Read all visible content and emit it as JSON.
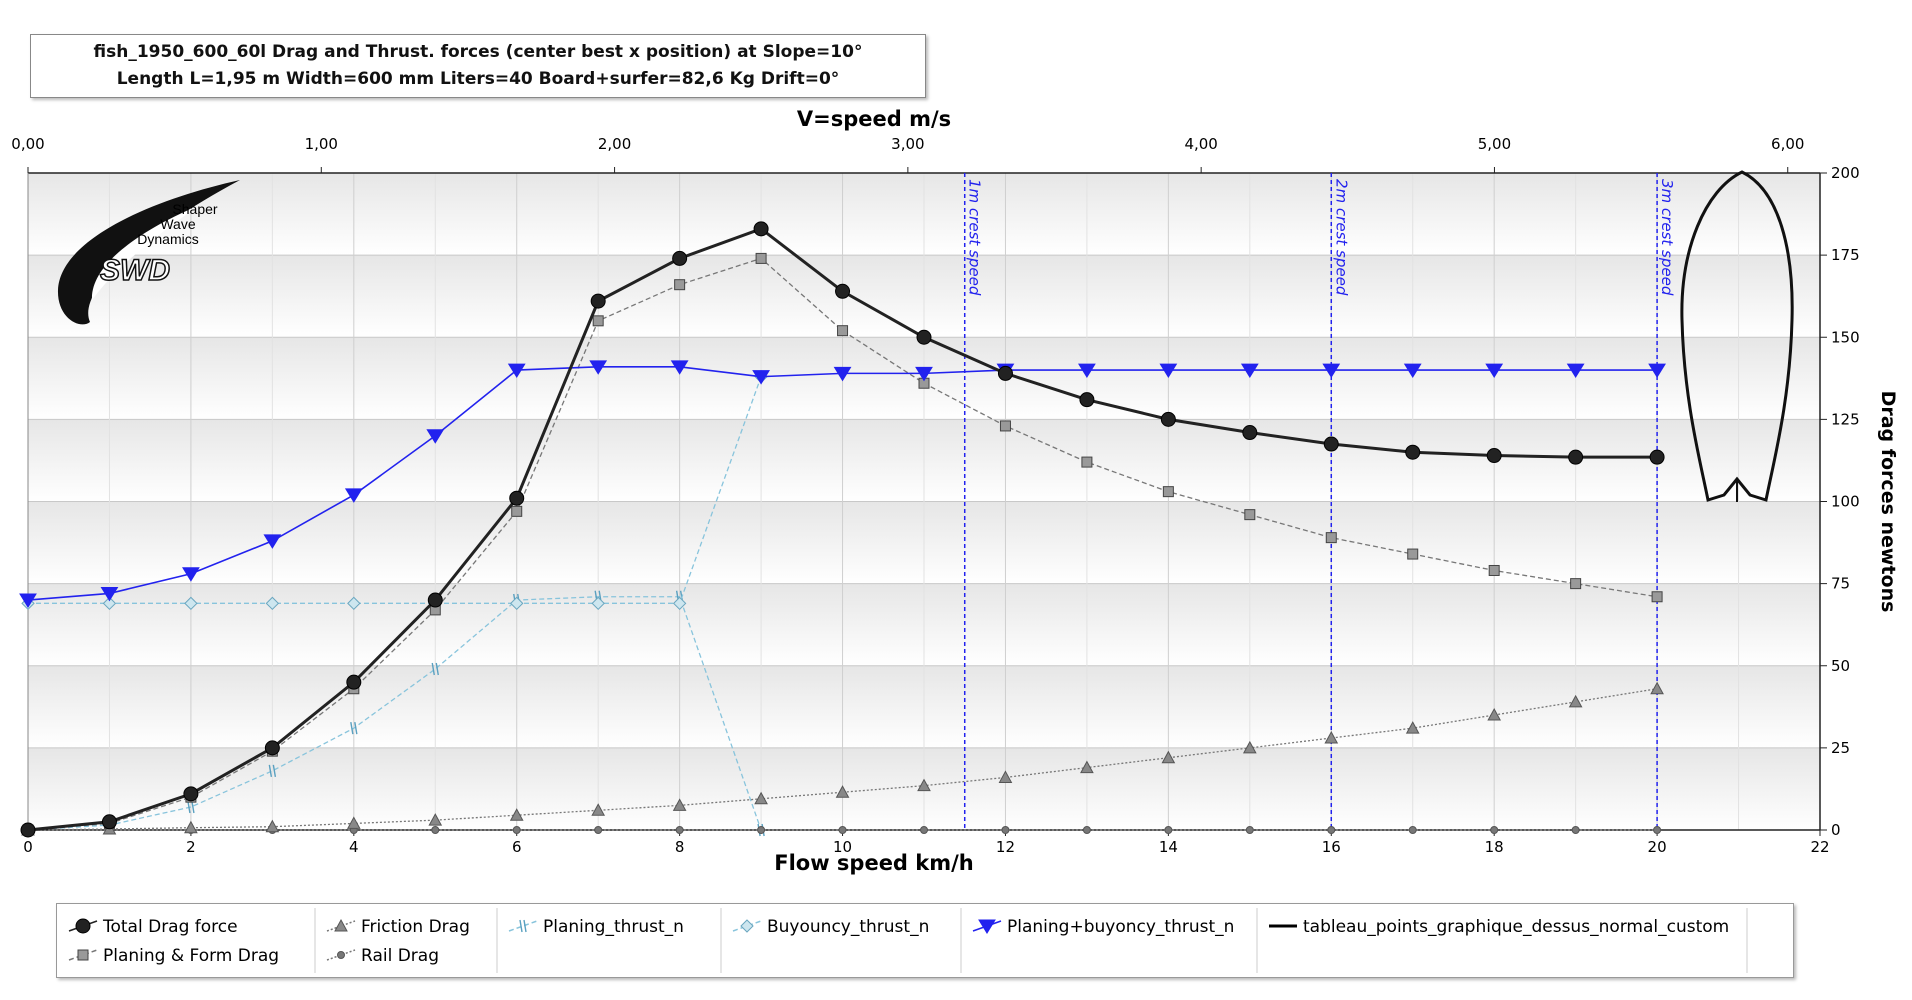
{
  "title_line1": "fish_1950_600_60l Drag and  Thrust. forces (center best x position) at  Slope=10°",
  "title_line2": "Length L=1,95 m Width=600 mm Liters=40 Board+surfer=82,6 Kg Drift=0°",
  "logo": {
    "line1": "Shaper",
    "line2": "Wave",
    "line3": "Dynamics",
    "mark": "SWD"
  },
  "chart_data": {
    "type": "line",
    "xlabel": "Flow speed km/h",
    "x2label": "V=speed m/s",
    "ylabel": "Drag forces newtons",
    "xlim": [
      0,
      22
    ],
    "x2lim": [
      0,
      6.11
    ],
    "ylim": [
      0,
      200
    ],
    "x_ticks": [
      0,
      2,
      4,
      6,
      8,
      10,
      12,
      14,
      16,
      18,
      20,
      22
    ],
    "x2_ticks": [
      "0,00",
      "1,00",
      "2,00",
      "3,00",
      "4,00",
      "5,00",
      "6,00"
    ],
    "y_ticks": [
      0,
      25,
      50,
      75,
      100,
      125,
      150,
      175,
      200
    ],
    "grid": true,
    "legend_position": "bottom",
    "crest_lines": [
      {
        "label": "1m crest speed",
        "x": 11.5
      },
      {
        "label": "2m crest speed",
        "x": 16
      },
      {
        "label": "3m crest speed",
        "x": 20
      }
    ],
    "series": [
      {
        "name": "Total Drag force",
        "color": "#222222",
        "marker": "circle",
        "style": "solid",
        "x": [
          0,
          1,
          2,
          3,
          4,
          5,
          6,
          7,
          8,
          9,
          10,
          11,
          12,
          13,
          14,
          15,
          16,
          17,
          18,
          19,
          20
        ],
        "values": [
          0,
          2.5,
          11,
          25,
          45,
          70,
          101,
          161,
          174,
          183,
          164,
          150,
          139,
          131,
          125,
          121,
          117.5,
          115,
          114,
          113.5,
          113.5
        ]
      },
      {
        "name": "Planing & Form Drag",
        "color": "#777777",
        "marker": "square",
        "style": "dashed",
        "x": [
          0,
          1,
          2,
          3,
          4,
          5,
          6,
          7,
          8,
          9,
          10,
          11,
          12,
          13,
          14,
          15,
          16,
          17,
          18,
          19,
          20
        ],
        "values": [
          0,
          2,
          10,
          24,
          43,
          67,
          97,
          155,
          166,
          174,
          152,
          136,
          123,
          112,
          103,
          96,
          89,
          84,
          79,
          75,
          71
        ]
      },
      {
        "name": "Friction Drag",
        "color": "#777777",
        "marker": "triangle",
        "style": "dotted",
        "x": [
          0,
          1,
          2,
          3,
          4,
          5,
          6,
          7,
          8,
          9,
          10,
          11,
          12,
          13,
          14,
          15,
          16,
          17,
          18,
          19,
          20
        ],
        "values": [
          0,
          0.3,
          0.7,
          1,
          2,
          3,
          4.5,
          6,
          7.5,
          9.5,
          11.5,
          13.5,
          16,
          19,
          22,
          25,
          28,
          31,
          35,
          39,
          43
        ]
      },
      {
        "name": "Rail Drag",
        "color": "#777777",
        "marker": "smallcircle",
        "style": "dotted",
        "x": [
          0,
          1,
          2,
          3,
          4,
          5,
          6,
          7,
          8,
          9,
          10,
          11,
          12,
          13,
          14,
          15,
          16,
          17,
          18,
          19,
          20
        ],
        "values": [
          0,
          0,
          0,
          0,
          0,
          0,
          0,
          0,
          0,
          0,
          0,
          0,
          0,
          0,
          0,
          0,
          0,
          0,
          0,
          0,
          0
        ]
      },
      {
        "name": "Planing_thrust_n",
        "color": "#88c4dc",
        "marker": "tick",
        "style": "dashed",
        "x": [
          0,
          1,
          2,
          3,
          4,
          5,
          6,
          7,
          8,
          9
        ],
        "values": [
          0,
          1.5,
          7,
          18,
          31,
          49,
          70,
          71,
          71,
          0
        ]
      },
      {
        "name": "Buyouncy_thrust_n",
        "color": "#88c4dc",
        "marker": "diamond",
        "style": "dashed",
        "x": [
          0,
          1,
          2,
          3,
          4,
          5,
          6,
          7,
          8,
          9
        ],
        "values": [
          69,
          69,
          69,
          69,
          69,
          69,
          69,
          69,
          69,
          138
        ]
      },
      {
        "name": "Planing+buyoncy_thrust_n",
        "color": "#2222ee",
        "marker": "downtriangle",
        "style": "solid",
        "x": [
          0,
          1,
          2,
          3,
          4,
          5,
          6,
          7,
          8,
          9,
          10,
          11,
          12,
          13,
          14,
          15,
          16,
          17,
          18,
          19,
          20
        ],
        "values": [
          70,
          72,
          78,
          88,
          102,
          120,
          140,
          141,
          141,
          138,
          139,
          139,
          140,
          140,
          140,
          140,
          140,
          140,
          140,
          140,
          140
        ]
      },
      {
        "name": "tableau_points_graphique_dessus_normal_custom",
        "color": "#000000",
        "marker": "none",
        "style": "solid",
        "x": [],
        "values": []
      }
    ]
  }
}
